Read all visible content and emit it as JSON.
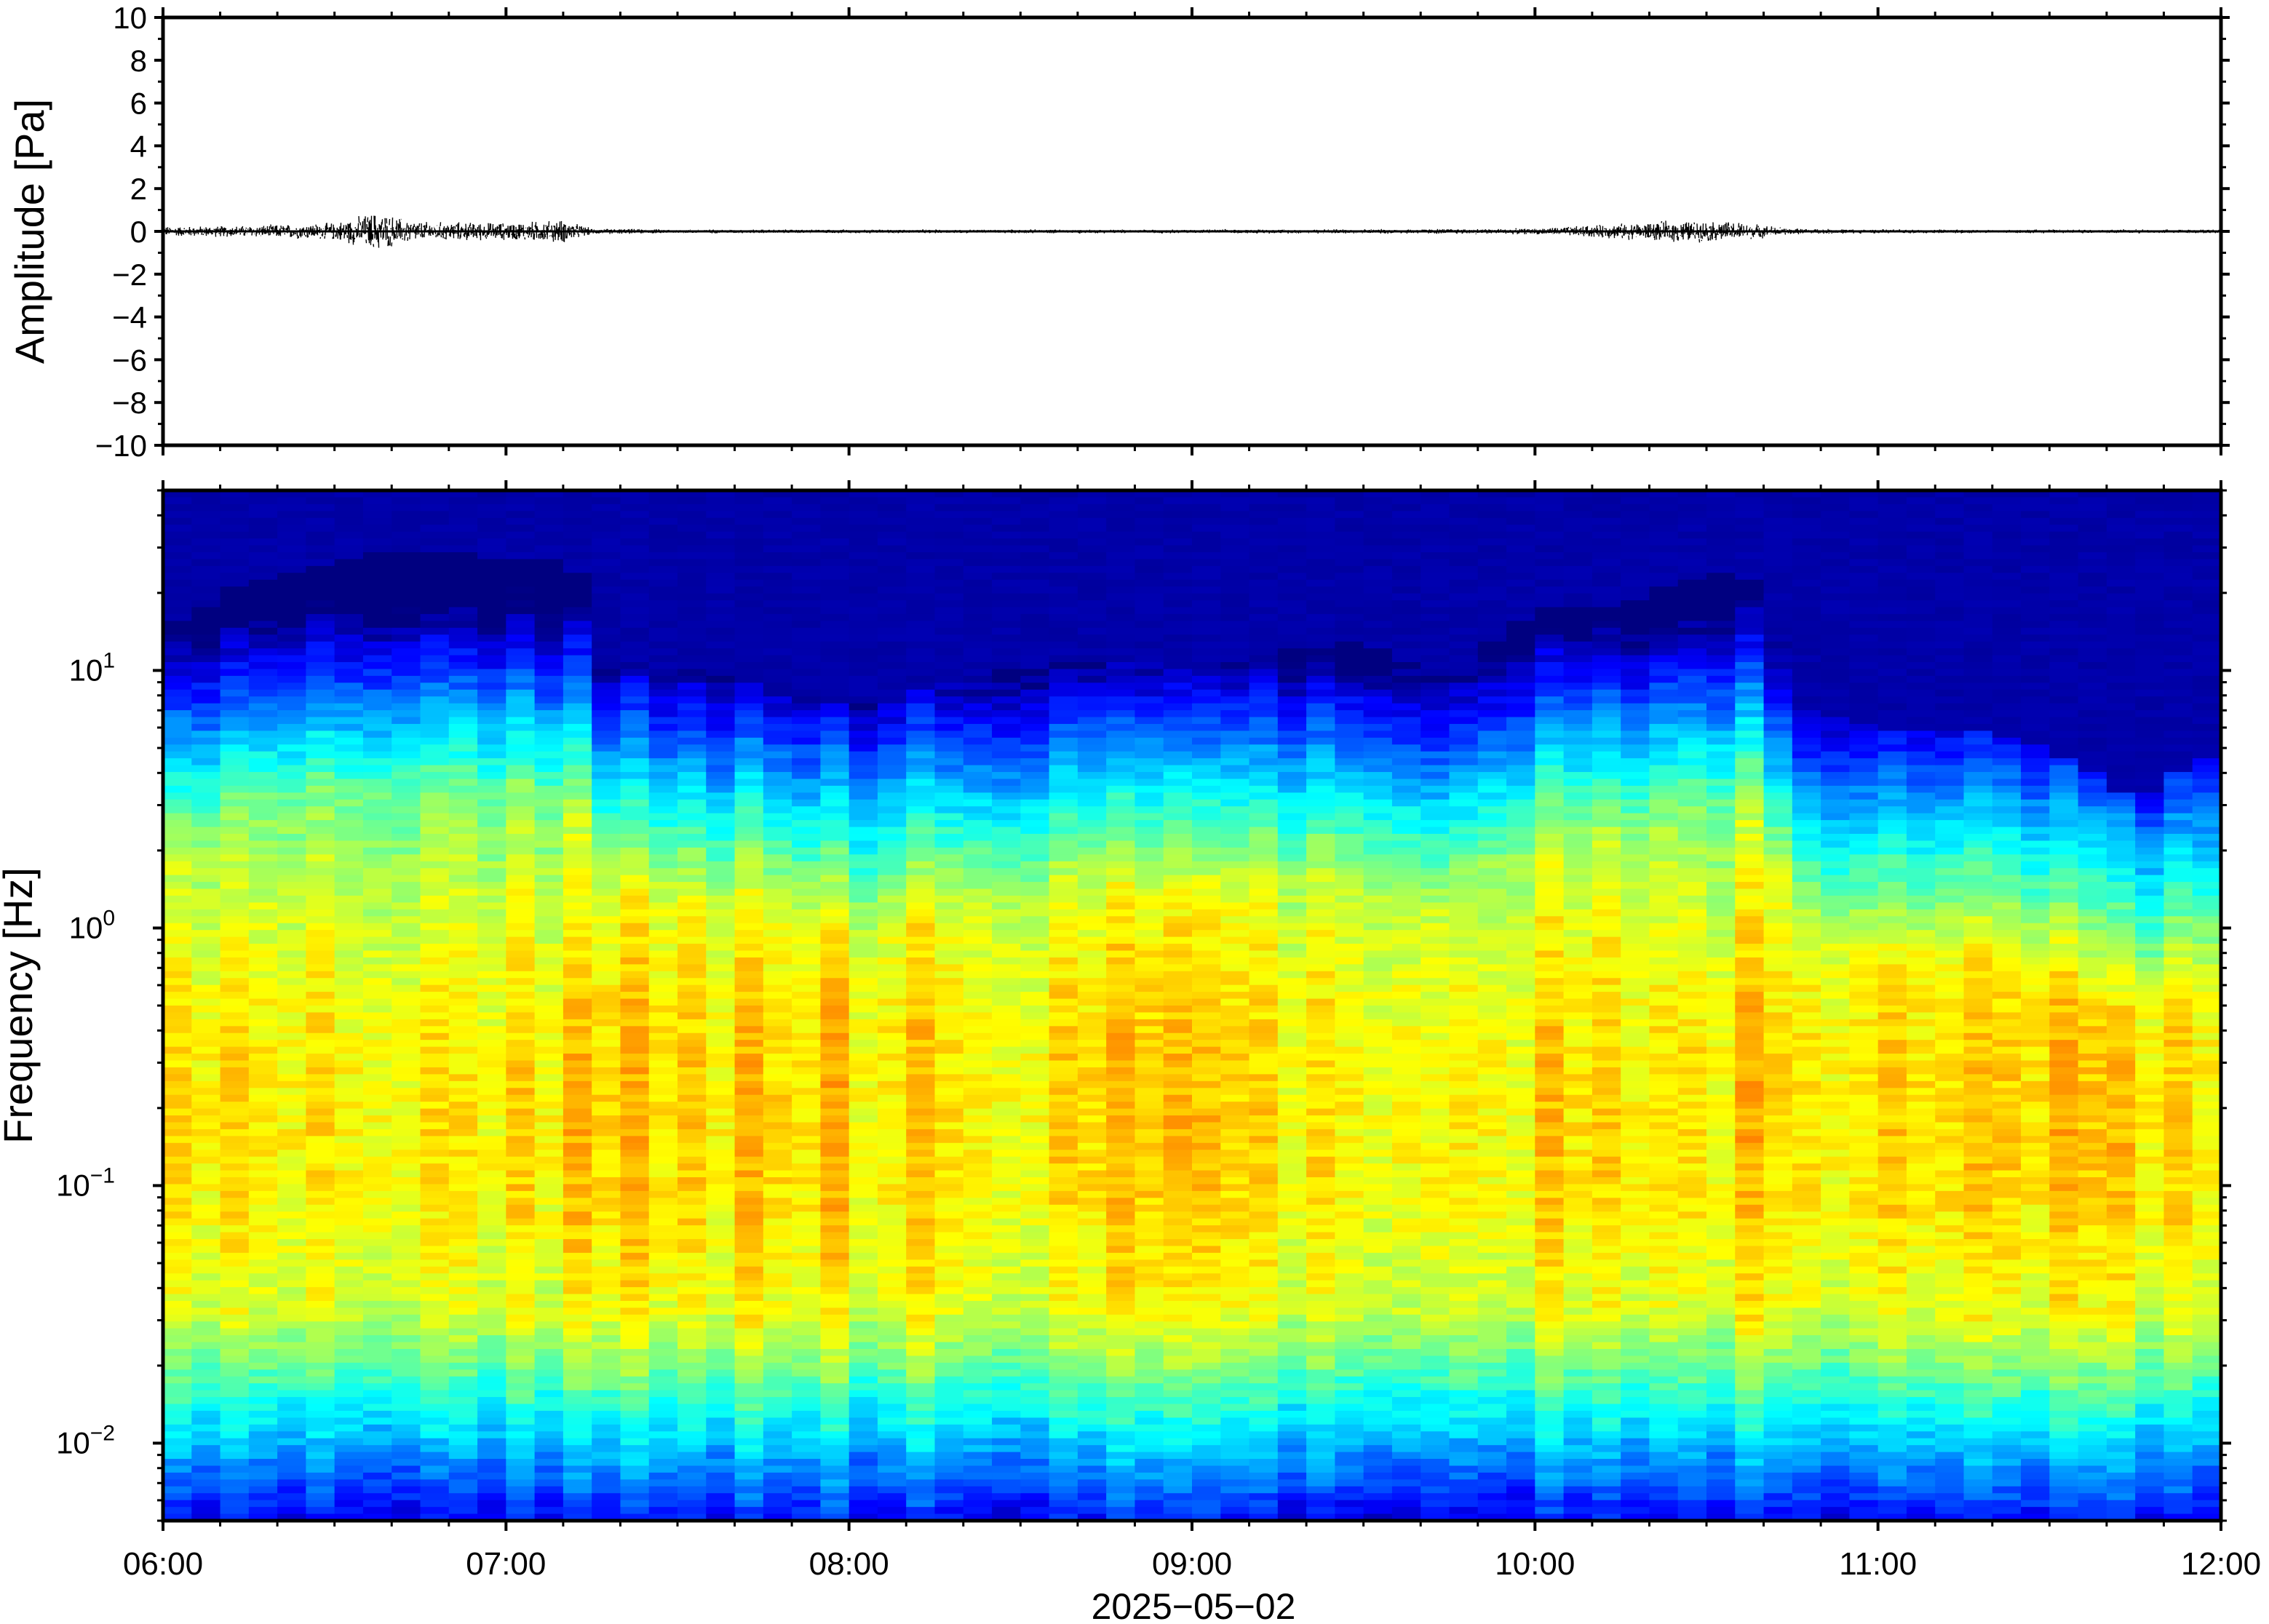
{
  "chart_data": [
    {
      "type": "line",
      "ylabel": "Amplitude [Pa]",
      "ylim": [
        -10,
        10
      ],
      "yticks": [
        10,
        8,
        6,
        4,
        2,
        0,
        -2,
        -4,
        -6,
        -8,
        -10
      ],
      "ytick_labels": [
        "10",
        "8",
        "6",
        "4",
        "2",
        "0",
        "−2",
        "−4",
        "−6",
        "−8",
        "−10"
      ],
      "xlim": [
        "06:00",
        "12:00"
      ],
      "series": [
        {
          "x": [
            "06:00",
            "06:15",
            "06:30",
            "06:37",
            "06:45",
            "07:00",
            "07:10",
            "07:15",
            "07:30",
            "08:00",
            "08:30",
            "09:00",
            "09:30",
            "10:00",
            "10:15",
            "10:25",
            "10:35",
            "10:45",
            "11:00",
            "11:30",
            "12:00"
          ],
          "y_envelope": [
            0.25,
            0.3,
            0.45,
            1.0,
            0.5,
            0.45,
            0.6,
            0.15,
            0.1,
            0.1,
            0.1,
            0.1,
            0.12,
            0.15,
            0.4,
            0.55,
            0.5,
            0.15,
            0.1,
            0.1,
            0.1
          ]
        }
      ],
      "grid": false,
      "line_color": "#000000"
    },
    {
      "type": "heatmap",
      "ylabel": "Frequency [Hz]",
      "yscale": "log",
      "ylim": [
        0.005,
        50
      ],
      "yticks": [
        {
          "value": 10,
          "base": "10",
          "exp": "1"
        },
        {
          "value": 1,
          "base": "10",
          "exp": "0"
        },
        {
          "value": 0.1,
          "base": "10",
          "exp": "−1"
        },
        {
          "value": 0.01,
          "base": "10",
          "exp": "−2"
        }
      ],
      "xlabel": "2025−05−02",
      "xlim": [
        "06:00",
        "12:00"
      ],
      "xticks": [
        "06:00",
        "07:00",
        "08:00",
        "09:00",
        "10:00",
        "11:00",
        "12:00"
      ],
      "colormap": "jet",
      "psd_ridge_hz": 0.19,
      "high_freq_cutoff_hz": {
        "x": [
          "06:00",
          "06:15",
          "06:30",
          "06:45",
          "07:00",
          "07:12",
          "07:15",
          "07:30",
          "07:45",
          "08:00",
          "08:15",
          "08:30",
          "08:45",
          "09:00",
          "09:15",
          "09:30",
          "09:45",
          "10:00",
          "10:15",
          "10:30",
          "10:38",
          "10:45",
          "11:00",
          "11:15",
          "11:30",
          "11:45",
          "12:00"
        ],
        "y": [
          14,
          22,
          27,
          29,
          27,
          26,
          11,
          10,
          9,
          7,
          9,
          10,
          11,
          10,
          12,
          13,
          9,
          17,
          18,
          24,
          23,
          7,
          6,
          6,
          5,
          3,
          5
        ]
      },
      "grid": false
    }
  ]
}
